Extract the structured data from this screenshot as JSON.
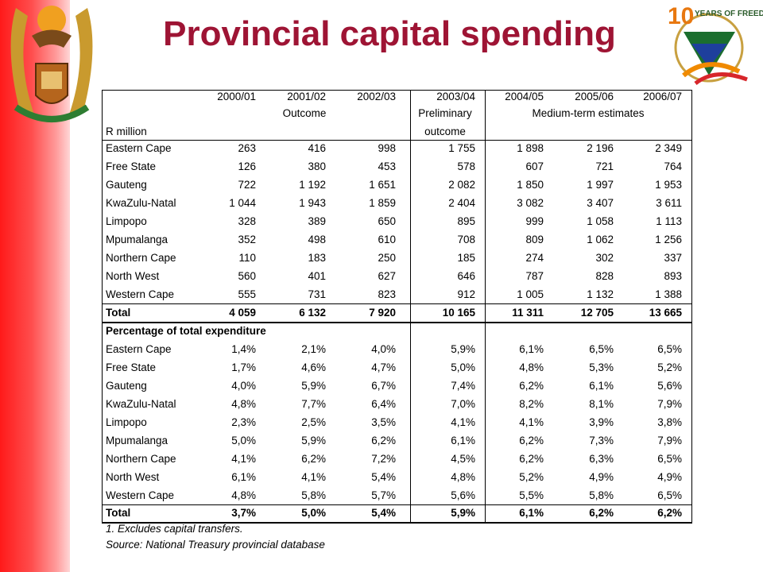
{
  "header": {
    "title": "Provincial capital spending",
    "logo": {
      "number": "10",
      "text": "YEARS OF FREEDOM"
    }
  },
  "table": {
    "columns": [
      "2000/01",
      "2001/02",
      "2002/03",
      "2003/04",
      "2004/05",
      "2005/06",
      "2006/07"
    ],
    "group_outcome": "Outcome",
    "group_preliminary": [
      "Preliminary",
      "outcome"
    ],
    "group_medium": "Medium-term estimates",
    "unit": "R million",
    "rows": [
      [
        "Eastern Cape",
        "263",
        "416",
        "998",
        "1 755",
        "1 898",
        "2 196",
        "2 349"
      ],
      [
        "Free State",
        "126",
        "380",
        "453",
        "578",
        "607",
        "721",
        "764"
      ],
      [
        "Gauteng",
        "722",
        "1 192",
        "1 651",
        "2 082",
        "1 850",
        "1 997",
        "1 953"
      ],
      [
        "KwaZulu-Natal",
        "1 044",
        "1 943",
        "1 859",
        "2 404",
        "3 082",
        "3 407",
        "3 611"
      ],
      [
        "Limpopo",
        "328",
        "389",
        "650",
        "895",
        "999",
        "1 058",
        "1 113"
      ],
      [
        "Mpumalanga",
        "352",
        "498",
        "610",
        "708",
        "809",
        "1 062",
        "1 256"
      ],
      [
        "Northern Cape",
        "110",
        "183",
        "250",
        "185",
        "274",
        "302",
        "337"
      ],
      [
        "North West",
        "560",
        "401",
        "627",
        "646",
        "787",
        "828",
        "893"
      ],
      [
        "Western Cape",
        "555",
        "731",
        "823",
        "912",
        "1 005",
        "1 132",
        "1 388"
      ]
    ],
    "total": [
      "Total",
      "4 059",
      "6 132",
      "7 920",
      "10 165",
      "11 311",
      "12 705",
      "13 665"
    ],
    "section": "Percentage of total expenditure",
    "pct_rows": [
      [
        "Eastern Cape",
        "1,4%",
        "2,1%",
        "4,0%",
        "5,9%",
        "6,1%",
        "6,5%",
        "6,5%"
      ],
      [
        "Free State",
        "1,7%",
        "4,6%",
        "4,7%",
        "5,0%",
        "4,8%",
        "5,3%",
        "5,2%"
      ],
      [
        "Gauteng",
        "4,0%",
        "5,9%",
        "6,7%",
        "7,4%",
        "6,2%",
        "6,1%",
        "5,6%"
      ],
      [
        "KwaZulu-Natal",
        "4,8%",
        "7,7%",
        "6,4%",
        "7,0%",
        "8,2%",
        "8,1%",
        "7,9%"
      ],
      [
        "Limpopo",
        "2,3%",
        "2,5%",
        "3,5%",
        "4,1%",
        "4,1%",
        "3,9%",
        "3,8%"
      ],
      [
        "Mpumalanga",
        "5,0%",
        "5,9%",
        "6,2%",
        "6,1%",
        "6,2%",
        "7,3%",
        "7,9%"
      ],
      [
        "Northern Cape",
        "4,1%",
        "6,2%",
        "7,2%",
        "4,5%",
        "6,2%",
        "6,3%",
        "6,5%"
      ],
      [
        "North West",
        "6,1%",
        "4,1%",
        "5,4%",
        "4,8%",
        "5,2%",
        "4,9%",
        "4,9%"
      ],
      [
        "Western Cape",
        "4,8%",
        "5,8%",
        "5,7%",
        "5,6%",
        "5,5%",
        "5,8%",
        "6,5%"
      ]
    ],
    "pct_total": [
      "Total",
      "3,7%",
      "5,0%",
      "5,4%",
      "5,9%",
      "6,1%",
      "6,2%",
      "6,2%"
    ]
  },
  "notes": [
    "1.  Excludes capital transfers.",
    "Source: National Treasury provincial database"
  ]
}
